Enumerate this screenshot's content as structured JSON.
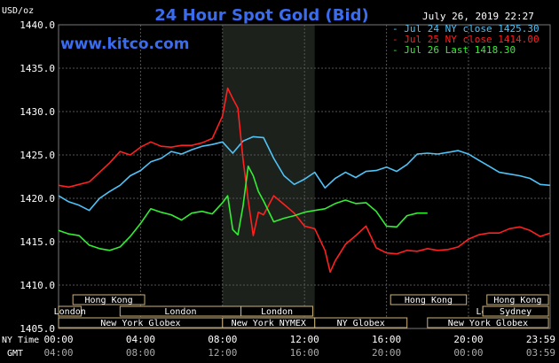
{
  "chart_data": {
    "type": "line",
    "title": "24 Hour Spot Gold (Bid)",
    "website": "www.kitco.com",
    "timestamp": "July 26, 2019 22:27",
    "ylabel": "USD/oz",
    "ylim": [
      1405,
      1440
    ],
    "yticks": [
      "1440.0",
      "1435.0",
      "1430.0",
      "1425.0",
      "1420.0",
      "1415.0",
      "1410.0",
      "1405.0"
    ],
    "ytick_values": [
      1440,
      1435,
      1430,
      1425,
      1420,
      1415,
      1410,
      1405
    ],
    "x_ny_label": "NY Time",
    "x_gmt_label": "GMT",
    "xticks_ny": [
      "00:00",
      "04:00",
      "08:00",
      "12:00",
      "16:00",
      "20:00",
      "23:59"
    ],
    "xticks_gmt": [
      "04:00",
      "08:00",
      "12:00",
      "16:00",
      "20:00",
      "00:00",
      "03:59"
    ],
    "xtick_hours": [
      0,
      4,
      8,
      12,
      16,
      20,
      23.983
    ],
    "xlim": [
      0,
      23.983
    ],
    "grid": true,
    "legend_position": "top-right",
    "shaded_period": [
      8,
      12.5
    ],
    "sessions": [
      {
        "label": "Hong Kong",
        "start": 0.7,
        "end": 4.2,
        "row": 0
      },
      {
        "label": "Hong Kong",
        "start": 16.2,
        "end": 19.9,
        "row": 0
      },
      {
        "label": "Hong Kong",
        "start": 20.9,
        "end": 23.9,
        "row": 0
      },
      {
        "label": "London",
        "start": 0,
        "end": 1.1,
        "row": 1
      },
      {
        "label": "London",
        "start": 3.0,
        "end": 8.9,
        "row": 1
      },
      {
        "label": "London",
        "start": 8.9,
        "end": 12.4,
        "row": 1
      },
      {
        "label": "London",
        "start": 20.7,
        "end": 21.6,
        "row": 1
      },
      {
        "label": "Sydney",
        "start": 20.7,
        "end": 23.9,
        "row": 1
      },
      {
        "label": "New York Globex",
        "start": 0,
        "end": 8.0,
        "row": 2
      },
      {
        "label": "New York NYMEX",
        "start": 8.0,
        "end": 12.5,
        "row": 2
      },
      {
        "label": "NY Globex",
        "start": 12.5,
        "end": 17.0,
        "row": 2
      },
      {
        "label": "New York Globex",
        "start": 18.0,
        "end": 23.9,
        "row": 2
      }
    ],
    "series": [
      {
        "name": "Jul 24 NY close 1425.30",
        "color": "#4fc3f7",
        "x": [
          0,
          0.5,
          1,
          1.5,
          2,
          2.5,
          3,
          3.5,
          4,
          4.5,
          5,
          5.5,
          6,
          6.5,
          7,
          7.5,
          8,
          8.5,
          9,
          9.5,
          10,
          10.5,
          11,
          11.5,
          12,
          12.5,
          13,
          13.5,
          14,
          14.5,
          15,
          15.5,
          16,
          16.5,
          17,
          17.5,
          18,
          18.5,
          19,
          19.5,
          20,
          20.5,
          21,
          21.5,
          22,
          22.5,
          23,
          23.5,
          23.98
        ],
        "values": [
          1420.3,
          1419.6,
          1419.2,
          1418.6,
          1420.0,
          1420.8,
          1421.5,
          1422.6,
          1423.2,
          1424.2,
          1424.6,
          1425.4,
          1425.1,
          1425.6,
          1426.0,
          1426.2,
          1426.5,
          1425.2,
          1426.6,
          1427.1,
          1427.0,
          1424.6,
          1422.6,
          1421.6,
          1422.2,
          1423.0,
          1421.2,
          1422.3,
          1423.0,
          1422.4,
          1423.1,
          1423.2,
          1423.6,
          1423.1,
          1423.9,
          1425.1,
          1425.2,
          1425.1,
          1425.3,
          1425.5,
          1425.1,
          1424.4,
          1423.7,
          1423.0,
          1422.8,
          1422.6,
          1422.3,
          1421.6,
          1421.5
        ]
      },
      {
        "name": "Jul 25 NY close 1414.00",
        "color": "#ff2020",
        "x": [
          0,
          0.5,
          1,
          1.5,
          2,
          2.5,
          3,
          3.5,
          4,
          4.5,
          5,
          5.5,
          6,
          6.5,
          7,
          7.5,
          8,
          8.25,
          8.5,
          8.75,
          9,
          9.25,
          9.5,
          9.75,
          10,
          10.5,
          11,
          11.5,
          12,
          12.5,
          13,
          13.25,
          13.5,
          14,
          14.5,
          15,
          15.5,
          16,
          16.5,
          17,
          17.5,
          18,
          18.5,
          19,
          19.5,
          20,
          20.5,
          21,
          21.5,
          22,
          22.5,
          23,
          23.5,
          23.98
        ],
        "values": [
          1421.5,
          1421.3,
          1421.6,
          1421.9,
          1423.0,
          1424.1,
          1425.4,
          1425.0,
          1425.9,
          1426.5,
          1426.0,
          1425.9,
          1426.1,
          1426.1,
          1426.4,
          1426.9,
          1429.5,
          1432.7,
          1431.5,
          1430.4,
          1424.5,
          1419.8,
          1415.7,
          1418.4,
          1418.1,
          1420.3,
          1419.3,
          1418.3,
          1416.8,
          1416.5,
          1414.0,
          1411.5,
          1412.8,
          1414.7,
          1415.7,
          1416.8,
          1414.3,
          1413.7,
          1413.6,
          1414.0,
          1413.9,
          1414.2,
          1414.0,
          1414.1,
          1414.4,
          1415.3,
          1415.8,
          1416.0,
          1416.0,
          1416.5,
          1416.7,
          1416.3,
          1415.6,
          1416.0
        ]
      },
      {
        "name": "Jul 26 Last 1418.30",
        "color": "#33ee33",
        "x": [
          0,
          0.5,
          1,
          1.5,
          2,
          2.5,
          3,
          3.5,
          4,
          4.5,
          5,
          5.5,
          6,
          6.5,
          7,
          7.5,
          8,
          8.25,
          8.5,
          8.75,
          9,
          9.25,
          9.5,
          9.75,
          10,
          10.5,
          11,
          11.5,
          12,
          12.5,
          13,
          13.5,
          14,
          14.5,
          15,
          15.5,
          16,
          16.5,
          17,
          17.5,
          18
        ],
        "values": [
          1416.3,
          1415.9,
          1415.7,
          1414.6,
          1414.2,
          1414.0,
          1414.4,
          1415.6,
          1417.1,
          1418.8,
          1418.4,
          1418.1,
          1417.5,
          1418.3,
          1418.5,
          1418.2,
          1419.5,
          1420.3,
          1416.4,
          1415.8,
          1419.1,
          1423.7,
          1422.6,
          1420.8,
          1419.7,
          1417.3,
          1417.7,
          1418.0,
          1418.4,
          1418.6,
          1418.8,
          1419.4,
          1419.8,
          1419.4,
          1419.5,
          1418.5,
          1416.8,
          1416.7,
          1418.0,
          1418.3,
          1418.3
        ]
      }
    ]
  },
  "colors": {
    "background": "#000000",
    "grid": "#555555",
    "axis_text": "#ffffff",
    "title": "#3a6cf0",
    "shaded": "#1c211c",
    "session_box": "#cbb27a",
    "timestamp": "#ffffff"
  }
}
